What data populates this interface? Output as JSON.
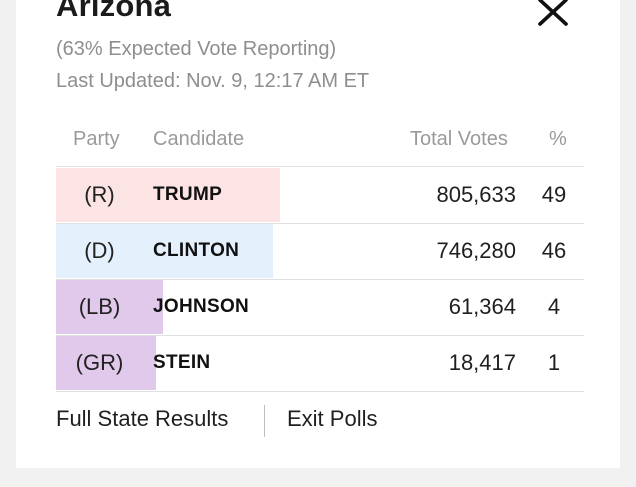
{
  "header": {
    "title": "Arizona",
    "reporting": "(63% Expected Vote Reporting)",
    "updated": "Last Updated: Nov. 9, 12:17 AM ET"
  },
  "table": {
    "columns": {
      "party": "Party",
      "candidate": "Candidate",
      "votes": "Total Votes",
      "pct": "%"
    },
    "rows": [
      {
        "party": "(R)",
        "candidate": "TRUMP",
        "votes": "805,633",
        "pct": "49",
        "share": 49,
        "color": "#fde4e4"
      },
      {
        "party": "(D)",
        "candidate": "CLINTON",
        "votes": "746,280",
        "pct": "46",
        "share": 46,
        "color": "#e4f1fc"
      },
      {
        "party": "(LB)",
        "candidate": "JOHNSON",
        "votes": "61,364",
        "pct": "4",
        "share": 4,
        "color": "#e0c9ea"
      },
      {
        "party": "(GR)",
        "candidate": "STEIN",
        "votes": "18,417",
        "pct": "1",
        "share": 1,
        "color": "#e0c9ea"
      }
    ]
  },
  "footer": {
    "full_results": "Full State Results",
    "exit_polls": "Exit Polls"
  },
  "icons": {
    "close": "close-icon"
  }
}
